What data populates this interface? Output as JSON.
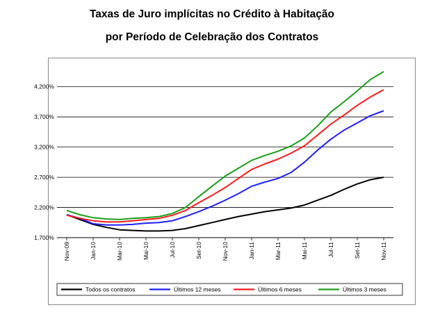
{
  "title_line1": "Taxas de Juro implícitas no Crédito à Habitação",
  "title_line2": "por Período de Celebração dos Contratos",
  "chart_data": {
    "type": "line",
    "x": [
      "Nov-09",
      "Dez-09",
      "Jan-10",
      "Fev-10",
      "Mar-10",
      "Abr-10",
      "Mai-10",
      "Jun-10",
      "Jul-10",
      "Ago-10",
      "Set-10",
      "Out-10",
      "Nov-10",
      "Dez-10",
      "Jan-11",
      "Fev-11",
      "Mar-11",
      "Abr-11",
      "Mai-11",
      "Jun-11",
      "Jul-11",
      "Ago-11",
      "Set-11",
      "Out-11",
      "Nov-11"
    ],
    "x_tick_labels": [
      "Nov-09",
      "Jan-10",
      "Mar-10",
      "Mai-10",
      "Jul-10",
      "Set-10",
      "Nov-10",
      "Jan-11",
      "Mar-11",
      "Mai-11",
      "Jul-11",
      "Set-11",
      "Nov-11"
    ],
    "y_tick_labels": [
      "1,700%",
      "2,200%",
      "2,700%",
      "3,200%",
      "3,700%",
      "4,200%"
    ],
    "ylim": [
      1.7,
      4.45
    ],
    "grid": true,
    "legend_position": "bottom",
    "series": [
      {
        "name": "Todos os contratos",
        "color": "#000000",
        "values": [
          2.08,
          2.0,
          1.92,
          1.87,
          1.83,
          1.82,
          1.81,
          1.81,
          1.82,
          1.85,
          1.9,
          1.95,
          2.0,
          2.05,
          2.09,
          2.13,
          2.16,
          2.19,
          2.24,
          2.32,
          2.4,
          2.5,
          2.59,
          2.66,
          2.7
        ]
      },
      {
        "name": "Últimos 12 meses",
        "color": "#1f1fff",
        "values": [
          2.08,
          2.02,
          1.93,
          1.91,
          1.91,
          1.92,
          1.94,
          1.95,
          1.98,
          2.05,
          2.13,
          2.22,
          2.32,
          2.43,
          2.55,
          2.62,
          2.68,
          2.78,
          2.95,
          3.15,
          3.33,
          3.48,
          3.6,
          3.72,
          3.8
        ]
      },
      {
        "name": "Últimos 6 meses",
        "color": "#ff1a1a",
        "values": [
          2.07,
          2.02,
          1.98,
          1.96,
          1.96,
          1.98,
          2.0,
          2.02,
          2.07,
          2.15,
          2.28,
          2.4,
          2.53,
          2.68,
          2.83,
          2.92,
          3.0,
          3.1,
          3.22,
          3.4,
          3.58,
          3.73,
          3.89,
          4.03,
          4.15
        ]
      },
      {
        "name": "Últimos 3 meses",
        "color": "#1a9e1a",
        "values": [
          2.15,
          2.08,
          2.03,
          2.01,
          2.0,
          2.02,
          2.03,
          2.05,
          2.1,
          2.2,
          2.38,
          2.55,
          2.72,
          2.85,
          2.98,
          3.06,
          3.13,
          3.22,
          3.35,
          3.55,
          3.78,
          3.95,
          4.13,
          4.32,
          4.45
        ]
      }
    ]
  }
}
